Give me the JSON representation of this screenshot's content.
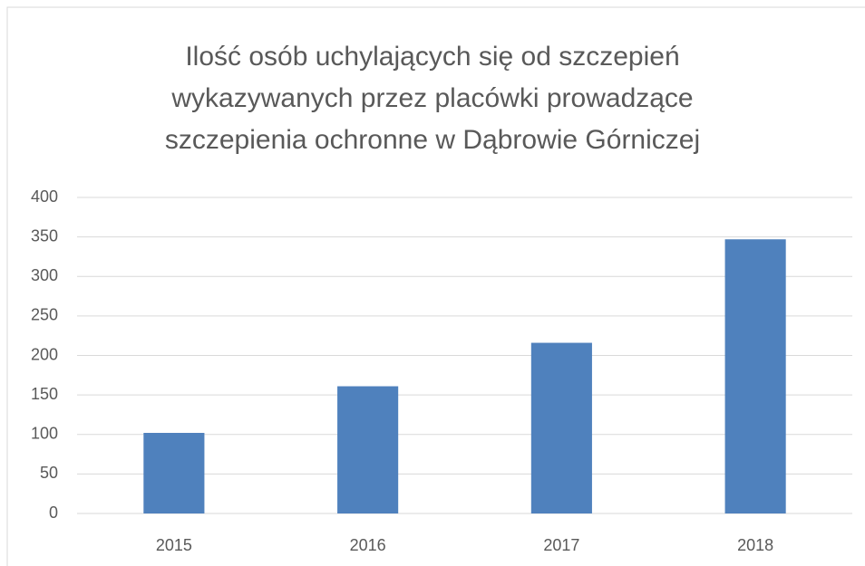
{
  "chart_data": {
    "type": "bar",
    "title": "Ilość osób uchylających się od szczepień wykazywanych przez placówki prowadzące szczepienia ochronne w Dąbrowie Górniczej",
    "categories": [
      "2015",
      "2016",
      "2017",
      "2018"
    ],
    "values": [
      102,
      161,
      216,
      347
    ],
    "color": "#4f81bd",
    "ylim": [
      0,
      400
    ],
    "yticks": [
      0,
      50,
      100,
      150,
      200,
      250,
      300,
      350,
      400
    ],
    "grid": true
  }
}
